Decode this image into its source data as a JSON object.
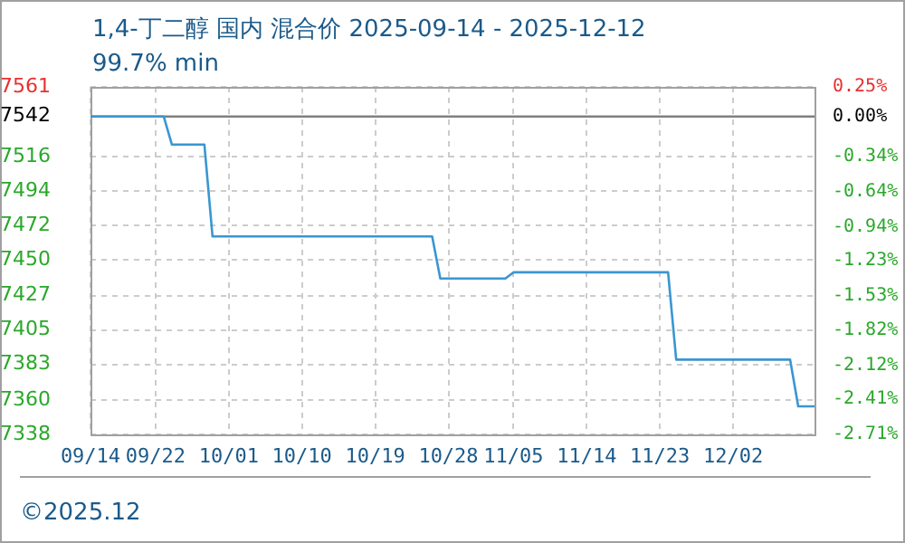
{
  "chart_data": {
    "type": "line",
    "title": "1,4-丁二醇 国内 混合价 2025-09-14 - 2025-12-12",
    "subtitle": "99.7% min",
    "x": [
      "2025-09-14",
      "2025-09-23",
      "2025-09-24",
      "2025-09-28",
      "2025-09-29",
      "2025-10-26",
      "2025-10-27",
      "2025-11-04",
      "2025-11-05",
      "2025-11-24",
      "2025-11-25",
      "2025-12-09",
      "2025-12-10",
      "2025-12-12"
    ],
    "series": [
      {
        "color": "#3a96d2",
        "values": [
          7542,
          7542,
          7524,
          7524,
          7465,
          7465,
          7438,
          7438,
          7442,
          7442,
          7386,
          7386,
          7356,
          7356
        ]
      }
    ],
    "xlim": [
      "2025-09-14",
      "2025-12-12"
    ],
    "xticks": [
      {
        "value": "2025-09-14",
        "label": "09/14"
      },
      {
        "value": "2025-09-22",
        "label": "09/22"
      },
      {
        "value": "2025-10-01",
        "label": "10/01"
      },
      {
        "value": "2025-10-10",
        "label": "10/10"
      },
      {
        "value": "2025-10-19",
        "label": "10/19"
      },
      {
        "value": "2025-10-28",
        "label": "10/28"
      },
      {
        "value": "2025-11-05",
        "label": "11/05"
      },
      {
        "value": "2025-11-14",
        "label": "11/14"
      },
      {
        "value": "2025-11-23",
        "label": "11/23"
      },
      {
        "value": "2025-12-02",
        "label": "12/02"
      }
    ],
    "ylim": [
      7338,
      7561
    ],
    "yticks": [
      7338,
      7360,
      7383,
      7405,
      7427,
      7450,
      7472,
      7494,
      7516,
      7542,
      7561
    ],
    "y2lim": [
      -2.71,
      0.25
    ],
    "y2ticks": [
      {
        "value": -2.71,
        "label": "-2.71%"
      },
      {
        "value": -2.41,
        "label": "-2.41%"
      },
      {
        "value": -2.12,
        "label": "-2.12%"
      },
      {
        "value": -1.82,
        "label": "-1.82%"
      },
      {
        "value": -1.53,
        "label": "-1.53%"
      },
      {
        "value": -1.23,
        "label": "-1.23%"
      },
      {
        "value": -0.94,
        "label": "-0.94%"
      },
      {
        "value": -0.64,
        "label": "-0.64%"
      },
      {
        "value": -0.34,
        "label": "-0.34%"
      },
      {
        "value": 0,
        "label": "0.00%"
      },
      {
        "value": 0.25,
        "label": "0.25%"
      }
    ],
    "ref_lines": [
      {
        "axis": "y",
        "value": 7542,
        "color": "#808080"
      }
    ],
    "grid": true,
    "legend": false,
    "marker": "none",
    "line_style": "solid",
    "annotations": [
      "©2025.12"
    ]
  }
}
